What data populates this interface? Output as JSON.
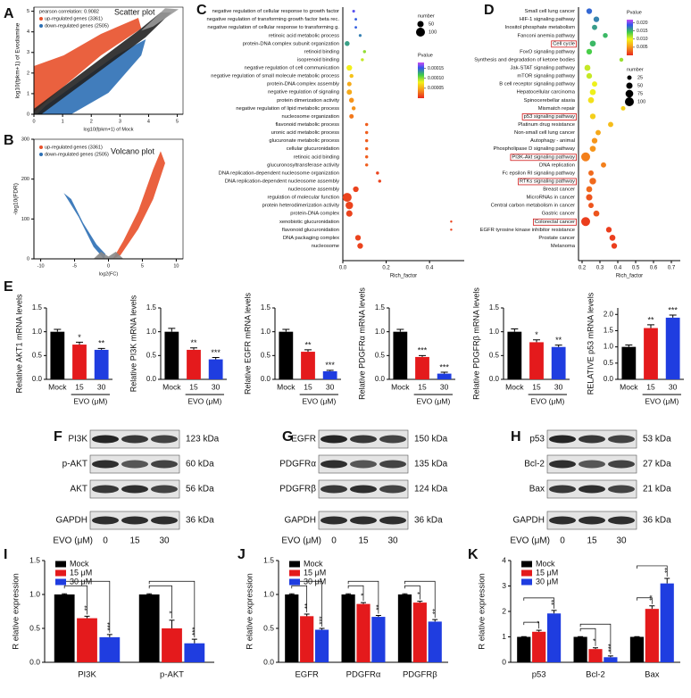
{
  "chart_data": [
    {
      "type": "scatter",
      "panel": "A",
      "title": "Scatter plot",
      "annotation": "pearson correlation: 0.9082",
      "series": [
        {
          "name": "up-regulated genes (3361)",
          "color": "#e8502a"
        },
        {
          "name": "down-regulated genes (2505)",
          "color": "#2c6fb5"
        }
      ],
      "xlabel": "log10(fpkm+1) of Mock",
      "ylabel": "log10(fpkm+1) of Evodiamine",
      "xlim": [
        0,
        5.2
      ],
      "ylim": [
        0,
        5.2
      ],
      "xticks": [
        0,
        1,
        2,
        3,
        4,
        5
      ],
      "yticks": [
        0,
        1,
        2,
        3,
        4,
        5
      ]
    },
    {
      "type": "volcano",
      "panel": "B",
      "title": "Volcano plot",
      "series": [
        {
          "name": "up-regulated genes (3361)",
          "color": "#e8502a"
        },
        {
          "name": "down-regulated genes (2505)",
          "color": "#2c6fb5"
        }
      ],
      "xlabel": "log2(FC)",
      "ylabel": "-log10(FDR)",
      "xlim": [
        -11,
        11
      ],
      "ylim": [
        0,
        300
      ],
      "xticks": [
        -10,
        -5,
        0,
        5,
        10
      ],
      "yticks": [
        0,
        100,
        200,
        300
      ]
    },
    {
      "type": "dot",
      "panel": "C",
      "xlabel": "Rich_factor",
      "terms": [
        "negative regulation of cellular response to growth factor",
        "negative regulation of transforming growth factor beta rec.",
        "negative regulation of cellular response to transforming g.",
        "retinoic acid metabolic process",
        "protein-DNA complex subunit organization",
        "retinoid binding",
        "isoprenoid binding",
        "negative regulation of cell communication",
        "negative regulation of small molecule metabolic process",
        "protein-DNA complex assembly",
        "negative regulation of signaling",
        "protein dimerization activity",
        "negative regulation of lipid metabolic process",
        "nucleosome organization",
        "flavonoid metabolic process",
        "uronic acid metabolic process",
        "glucuronate metabolic process",
        "cellular glucuronidation",
        "retinoic acid binding",
        "glucuronosyltransferase activity",
        "DNA replication-dependent nucleosome organization",
        "DNA replication-dependent nucleosome assembly",
        "nucleosome assembly",
        "regulation of molecular function",
        "protein heterodimerization activity",
        "protein-DNA complex",
        "xenobiotic glucuronidation",
        "flavonoid glucuronidation",
        "DNA packaging complex",
        "nucleosome"
      ],
      "values": [
        0.05,
        0.06,
        0.06,
        0.08,
        0.02,
        0.1,
        0.09,
        0.03,
        0.04,
        0.03,
        0.03,
        0.04,
        0.05,
        0.04,
        0.11,
        0.11,
        0.11,
        0.11,
        0.11,
        0.11,
        0.16,
        0.17,
        0.06,
        0.02,
        0.03,
        0.03,
        0.5,
        0.5,
        0.07,
        0.08
      ],
      "pvalues": [
        0.00016,
        0.00015,
        0.00015,
        0.00014,
        0.00013,
        0.0001,
        9e-05,
        8e-05,
        6e-05,
        5e-05,
        5e-05,
        4e-05,
        4e-05,
        3e-05,
        2e-05,
        2e-05,
        2e-05,
        2e-05,
        2e-05,
        2e-05,
        1e-05,
        1e-05,
        1e-05,
        1e-05,
        1e-05,
        1e-05,
        1e-05,
        1e-05,
        1e-05,
        1e-05
      ],
      "numbers": [
        10,
        8,
        8,
        10,
        30,
        12,
        12,
        40,
        20,
        25,
        35,
        30,
        20,
        25,
        12,
        12,
        12,
        12,
        12,
        12,
        12,
        12,
        40,
        100,
        70,
        50,
        6,
        6,
        40,
        40
      ],
      "xlim": [
        0,
        0.56
      ],
      "xticks": [
        {
          "value": 0,
          "label": "0.0"
        },
        0.2,
        0.4
      ],
      "size_title": "number",
      "size_ticks": [
        50,
        100
      ],
      "color_title": "Pvalue",
      "color_range": [
        0,
        0.00018
      ],
      "color_ticks": [
        0.00015,
        {
          "value": 0.0001,
          "label": "0.00010"
        },
        5e-05
      ]
    },
    {
      "type": "dot",
      "panel": "D",
      "xlabel": "Rich_factor",
      "terms": [
        "Small cell lung cancer",
        "HIF-1 signaling pathway",
        "Inositol phosphate metabolism",
        "Fanconi anemia pathway",
        "Cell cycle",
        "FoxO signaling pathway",
        "Synthesis and degradation of ketone bodies",
        "Jak-STAT signaling pathway",
        "mTOR signaling pathway",
        "B cell receptor signaling pathway",
        "Hepatocellular carcinoma",
        "Spinocerebellar ataxia",
        "Mismatch repair",
        "p53 signaling pathway",
        "Platinum drug resistance",
        "Non-small cell lung cancer",
        "Autophagy - animal",
        "Phospholipase D signaling pathway",
        "PI3K-Akt signaling pathway",
        "DNA replication",
        "Fc epsilon RI signaling pathway",
        "RTKs signaling pathway",
        "Breast cancer",
        "MicroRNAs in cancer",
        "Central carbon metabolism in cancer",
        "Gastric cancer",
        "Colorectal cancer",
        "EGFR tyrosine kinase inhibitor resistance",
        "Prostate cancer",
        "Melanoma"
      ],
      "highlight": [
        4,
        13,
        18,
        21,
        26
      ],
      "values": [
        0.24,
        0.28,
        0.27,
        0.33,
        0.26,
        0.24,
        0.42,
        0.23,
        0.24,
        0.27,
        0.26,
        0.25,
        0.43,
        0.26,
        0.36,
        0.29,
        0.27,
        0.26,
        0.22,
        0.32,
        0.25,
        0.26,
        0.24,
        0.24,
        0.25,
        0.28,
        0.22,
        0.35,
        0.37,
        0.38
      ],
      "pvalues": [
        0.018,
        0.017,
        0.016,
        0.015,
        0.015,
        0.014,
        0.012,
        0.011,
        0.011,
        0.01,
        0.01,
        0.009,
        0.008,
        0.008,
        0.007,
        0.006,
        0.005,
        0.005,
        0.004,
        0.004,
        0.003,
        0.003,
        0.003,
        0.002,
        0.002,
        0.002,
        0.001,
        0.001,
        0.001,
        0.001
      ],
      "numbers": [
        40,
        40,
        35,
        30,
        45,
        40,
        20,
        45,
        40,
        35,
        45,
        45,
        25,
        40,
        35,
        35,
        40,
        45,
        100,
        35,
        35,
        55,
        45,
        50,
        35,
        45,
        100,
        40,
        45,
        40
      ],
      "xlim": [
        0.18,
        0.75
      ],
      "xticks": [
        0.2,
        0.3,
        0.4,
        0.5,
        0.6,
        0.7
      ],
      "size_title": "number",
      "size_ticks": [
        25,
        50,
        75,
        100
      ],
      "color_title": "Pvalue",
      "color_range": [
        0,
        0.022
      ],
      "color_ticks": [
        {
          "value": 0.02,
          "label": "0.020"
        },
        0.015,
        {
          "value": 0.01,
          "label": "0.010"
        },
        0.005
      ]
    },
    {
      "type": "bar",
      "panel": "E",
      "ylabel": "Relative AKT1 mRNA levels",
      "categories": [
        "Mock",
        "15",
        "30"
      ],
      "group_label": "EVO (μM)",
      "values": [
        1.0,
        0.73,
        0.62
      ],
      "errors": [
        0.05,
        0.05,
        0.03
      ],
      "stars": [
        null,
        "*",
        "**"
      ],
      "colors": [
        "#000000",
        "#e41a1c",
        "#1f3de0"
      ],
      "ylim": [
        0,
        1.5
      ],
      "yticks": [
        {
          "value": 0,
          "label": "0.0"
        },
        0.5,
        {
          "value": 1,
          "label": "1.0"
        },
        1.5
      ]
    },
    {
      "type": "bar",
      "ylabel": "Relative PI3K mRNA levels",
      "categories": [
        "Mock",
        "15",
        "30"
      ],
      "group_label": "EVO (μM)",
      "values": [
        1.0,
        0.62,
        0.42
      ],
      "errors": [
        0.07,
        0.04,
        0.04
      ],
      "stars": [
        null,
        "**",
        "***"
      ],
      "colors": [
        "#000000",
        "#e41a1c",
        "#1f3de0"
      ],
      "ylim": [
        0,
        1.5
      ],
      "yticks": [
        {
          "value": 0,
          "label": "0.0"
        },
        0.5,
        {
          "value": 1,
          "label": "1.0"
        },
        1.5
      ]
    },
    {
      "type": "bar",
      "ylabel": "Relative EGFR mRNA levels",
      "categories": [
        "Mock",
        "15",
        "30"
      ],
      "group_label": "EVO (μM)",
      "values": [
        1.0,
        0.58,
        0.17
      ],
      "errors": [
        0.05,
        0.04,
        0.02
      ],
      "stars": [
        null,
        "**",
        "***"
      ],
      "colors": [
        "#000000",
        "#e41a1c",
        "#1f3de0"
      ],
      "ylim": [
        0,
        1.5
      ],
      "yticks": [
        {
          "value": 0,
          "label": "0.0"
        },
        0.5,
        {
          "value": 1,
          "label": "1.0"
        },
        1.5
      ]
    },
    {
      "type": "bar",
      "ylabel": "Relative PDGFRα mRNA levels",
      "categories": [
        "Mock",
        "15",
        "30"
      ],
      "group_label": "EVO (μM)",
      "values": [
        1.0,
        0.47,
        0.12
      ],
      "errors": [
        0.05,
        0.03,
        0.03
      ],
      "stars": [
        null,
        "***",
        "***"
      ],
      "colors": [
        "#000000",
        "#e41a1c",
        "#1f3de0"
      ],
      "ylim": [
        0,
        1.5
      ],
      "yticks": [
        {
          "value": 0,
          "label": "0.0"
        },
        0.5,
        {
          "value": 1,
          "label": "1.0"
        },
        1.5
      ]
    },
    {
      "type": "bar",
      "ylabel": "Relative PDGFRβ mRNA levels",
      "categories": [
        "Mock",
        "15",
        "30"
      ],
      "group_label": "EVO (μM)",
      "values": [
        1.0,
        0.78,
        0.68
      ],
      "errors": [
        0.06,
        0.05,
        0.04
      ],
      "stars": [
        null,
        "*",
        "**"
      ],
      "colors": [
        "#000000",
        "#e41a1c",
        "#1f3de0"
      ],
      "ylim": [
        0,
        1.5
      ],
      "yticks": [
        {
          "value": 0,
          "label": "0.0"
        },
        0.5,
        {
          "value": 1,
          "label": "1.0"
        },
        1.5
      ]
    },
    {
      "type": "bar",
      "ylabel": "RELATIVE p53 mRNA levels",
      "categories": [
        "Mock",
        "15",
        "30"
      ],
      "group_label": "EVO (μM)",
      "values": [
        1.0,
        1.58,
        1.9
      ],
      "errors": [
        0.06,
        0.1,
        0.08
      ],
      "stars": [
        null,
        "**",
        "***"
      ],
      "colors": [
        "#000000",
        "#e41a1c",
        "#1f3de0"
      ],
      "ylim": [
        0,
        2.2
      ],
      "yticks": [
        {
          "value": 0,
          "label": "0.0"
        },
        0.5,
        {
          "value": 1,
          "label": "1.0"
        },
        1.5,
        {
          "value": 2,
          "label": "2.0"
        }
      ]
    },
    {
      "type": "grouped",
      "panel": "I",
      "ylabel": "R elative expression",
      "categories": [
        "PI3K",
        "p-AKT"
      ],
      "series": [
        {
          "name": "Mock",
          "color": "#000000",
          "values": [
            1,
            1
          ],
          "errors": [
            0.01,
            0.01
          ],
          "stars": [
            null,
            null
          ]
        },
        {
          "name": "15 μM",
          "color": "#e41a1c",
          "values": [
            0.65,
            0.5
          ],
          "errors": [
            0.03,
            0.12
          ],
          "stars": [
            "**",
            "*"
          ]
        },
        {
          "name": "30 μM",
          "color": "#1f3de0",
          "values": [
            0.37,
            0.28
          ],
          "errors": [
            0.04,
            0.06
          ],
          "stars": [
            "***",
            "***"
          ]
        }
      ],
      "ylim": [
        0,
        1.5
      ],
      "yticks": [
        {
          "value": 0,
          "label": "0.0"
        },
        0.5,
        {
          "value": 1,
          "label": "1.0"
        },
        1.5
      ]
    },
    {
      "type": "grouped",
      "panel": "J",
      "ylabel": "R elative expression",
      "categories": [
        "EGFR",
        "PDGFRα",
        "PDGFRβ"
      ],
      "series": [
        {
          "name": "Mock",
          "color": "#000000",
          "values": [
            1,
            1,
            1
          ],
          "errors": [
            0.01,
            0.01,
            0.01
          ],
          "stars": [
            null,
            null,
            null
          ]
        },
        {
          "name": "15 μM",
          "color": "#e41a1c",
          "values": [
            0.68,
            0.86,
            0.88
          ],
          "errors": [
            0.03,
            0.02,
            0.02
          ],
          "stars": [
            "**",
            "*",
            "*"
          ]
        },
        {
          "name": "30 μM",
          "color": "#1f3de0",
          "values": [
            0.48,
            0.67,
            0.6
          ],
          "errors": [
            0.02,
            0.02,
            0.03
          ],
          "stars": [
            "***",
            "**",
            "**"
          ]
        }
      ],
      "ylim": [
        0,
        1.5
      ],
      "yticks": [
        {
          "value": 0,
          "label": "0.0"
        },
        0.5,
        {
          "value": 1,
          "label": "1.0"
        },
        1.5
      ]
    },
    {
      "type": "grouped",
      "panel": "K",
      "ylabel": "R elative expression",
      "categories": [
        "p53",
        "Bcl-2",
        "Bax"
      ],
      "series": [
        {
          "name": "Mock",
          "color": "#000000",
          "values": [
            1,
            1,
            1
          ],
          "errors": [
            0.01,
            0.01,
            0.01
          ],
          "stars": [
            null,
            null,
            null
          ]
        },
        {
          "name": "15 μM",
          "color": "#e41a1c",
          "values": [
            1.2,
            0.52,
            2.1
          ],
          "errors": [
            0.06,
            0.05,
            0.12
          ],
          "stars": [
            "*",
            "*",
            "**"
          ]
        },
        {
          "name": "30 μM",
          "color": "#1f3de0",
          "values": [
            1.92,
            0.2,
            3.1
          ],
          "errors": [
            0.12,
            0.05,
            0.2
          ],
          "stars": [
            "**",
            "***",
            "**"
          ]
        }
      ],
      "ylim": [
        0,
        4
      ],
      "yticks": [
        0,
        1,
        2,
        3,
        4
      ]
    }
  ],
  "blots": [
    {
      "panel": "F",
      "rows": [
        {
          "name": "PI3K",
          "kda": "123 kDa"
        },
        {
          "name": "p-AKT",
          "kda": "60 kDa"
        },
        {
          "name": "AKT",
          "kda": "56 kDa"
        },
        {
          "name": "GAPDH",
          "kda": "36 kDa"
        }
      ],
      "lane_label": "EVO (μM)",
      "lanes": [
        "0",
        "15",
        "30"
      ]
    },
    {
      "panel": "G",
      "rows": [
        {
          "name": "EGFR",
          "kda": "150 kDa"
        },
        {
          "name": "PDGFRα",
          "kda": "135 kDa"
        },
        {
          "name": "PDGFRβ",
          "kda": "124 kDa"
        },
        {
          "name": "GAPDH",
          "kda": "36 kDa"
        }
      ],
      "lane_label": "EVO (μM)",
      "lanes": [
        "0",
        "15",
        "30"
      ]
    },
    {
      "panel": "H",
      "rows": [
        {
          "name": "p53",
          "kda": "53 kDa"
        },
        {
          "name": "Bcl-2",
          "kda": "27 kDa"
        },
        {
          "name": "Bax",
          "kda": "21 kDa"
        },
        {
          "name": "GAPDH",
          "kda": "36 kDa"
        }
      ],
      "lane_label": "EVO (μM)",
      "lanes": [
        "0",
        "15",
        "30"
      ]
    }
  ]
}
